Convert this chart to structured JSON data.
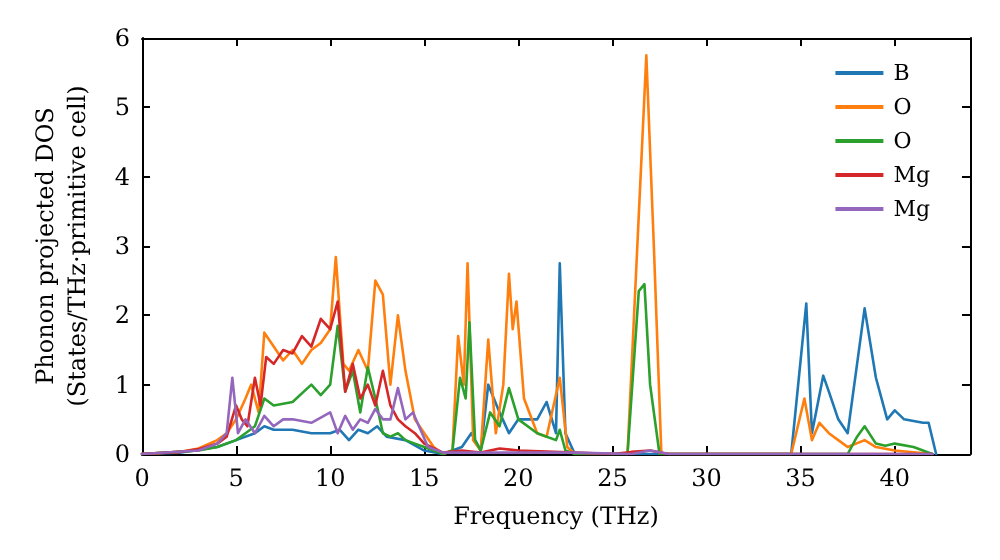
{
  "chart_data": {
    "type": "line",
    "xlabel": "Frequency (THz)",
    "ylabel": "Phonon projected DOS\n(States/THz·primitive cell)",
    "xlim": [
      0,
      44
    ],
    "xticks": [
      0,
      5,
      10,
      15,
      20,
      25,
      30,
      35,
      40
    ],
    "ylim": [
      0,
      6
    ],
    "yticks": [
      0,
      1,
      2,
      3,
      4,
      5,
      6
    ],
    "grid": false,
    "legend": "top right",
    "marker": "none",
    "line_style": "solid",
    "series": [
      {
        "name": "B",
        "color": "#1f77b4",
        "x": [
          0,
          2,
          4,
          5,
          6,
          6.5,
          7,
          8,
          9,
          10,
          10.5,
          11,
          11.5,
          12,
          12.5,
          13,
          14,
          15,
          16,
          17,
          17.5,
          18,
          18.4,
          19,
          19.5,
          20,
          21,
          21.5,
          22,
          22.2,
          22.5,
          23,
          34.5,
          35.3,
          35.6,
          36.2,
          36.5,
          37,
          37.5,
          38.4,
          39,
          39.6,
          40,
          40.5,
          41.5,
          41.8,
          42.2
        ],
        "values": [
          0,
          0.02,
          0.1,
          0.2,
          0.3,
          0.4,
          0.35,
          0.35,
          0.3,
          0.3,
          0.35,
          0.2,
          0.35,
          0.3,
          0.4,
          0.25,
          0.2,
          0.05,
          0,
          0.1,
          0.3,
          0.05,
          1.0,
          0.6,
          0.3,
          0.5,
          0.5,
          0.75,
          0.3,
          2.75,
          0.3,
          0,
          0,
          2.17,
          0.3,
          1.13,
          0.9,
          0.5,
          0.3,
          2.1,
          1.1,
          0.5,
          0.63,
          0.5,
          0.45,
          0.45,
          0
        ]
      },
      {
        "name": "O",
        "color": "#ff7f0e",
        "x": [
          0,
          2,
          3,
          4,
          4.5,
          5,
          5.5,
          5.8,
          6.2,
          6.5,
          7,
          7.5,
          8,
          8.5,
          9,
          9.5,
          10,
          10.3,
          10.7,
          11,
          11.5,
          12,
          12.4,
          12.8,
          13.2,
          13.6,
          14,
          14.5,
          15,
          15.5,
          16,
          16.5,
          16.8,
          17.1,
          17.3,
          17.6,
          18,
          18.4,
          18.8,
          19.2,
          19.5,
          19.7,
          19.9,
          20.3,
          21,
          21.5,
          22.2,
          22.6,
          23,
          25.8,
          26.8,
          27.2,
          27.6,
          34.5,
          35.2,
          35.6,
          36,
          36.5,
          37,
          37.5,
          38.4,
          39,
          40,
          42
        ],
        "values": [
          0,
          0.03,
          0.08,
          0.2,
          0.3,
          0.5,
          0.8,
          1.0,
          0.6,
          1.75,
          1.55,
          1.35,
          1.5,
          1.3,
          1.5,
          1.6,
          1.8,
          2.84,
          1.3,
          1.2,
          1.5,
          1.2,
          2.5,
          2.3,
          1.0,
          2.0,
          1.2,
          0.5,
          0.3,
          0.1,
          0,
          0.05,
          1.7,
          1.0,
          2.75,
          0.2,
          0.05,
          1.65,
          0.3,
          1.0,
          2.6,
          1.8,
          2.2,
          0.8,
          0.3,
          0.25,
          1.1,
          0.1,
          0,
          0,
          5.75,
          3.0,
          0,
          0,
          0.8,
          0.2,
          0.45,
          0.3,
          0.2,
          0.1,
          0.2,
          0.1,
          0.05,
          0
        ]
      },
      {
        "name": "O",
        "color": "#2ca02c",
        "x": [
          0,
          3,
          4,
          5,
          5.5,
          6,
          6.5,
          7,
          8,
          9,
          9.5,
          10,
          10.4,
          10.8,
          11.2,
          11.6,
          12,
          12.4,
          12.8,
          13.2,
          13.6,
          14,
          14.5,
          15,
          16,
          16.5,
          16.9,
          17.2,
          17.4,
          17.7,
          18,
          18.5,
          19,
          19.5,
          20,
          21,
          22,
          22.2,
          22.5,
          23,
          25.8,
          26.4,
          26.7,
          27,
          27.5,
          37.5,
          38,
          38.4,
          39,
          39.5,
          40,
          41,
          42
        ],
        "values": [
          0,
          0.05,
          0.1,
          0.2,
          0.3,
          0.4,
          0.8,
          0.7,
          0.75,
          1.0,
          0.85,
          1.0,
          1.85,
          0.9,
          1.2,
          0.6,
          1.25,
          0.8,
          0.3,
          0.25,
          0.3,
          0.2,
          0.15,
          0.1,
          0,
          0.05,
          1.1,
          0.8,
          1.9,
          0.2,
          0.05,
          0.6,
          0.4,
          0.95,
          0.5,
          0.3,
          0.2,
          0.35,
          0.05,
          0,
          0,
          2.35,
          2.45,
          1.0,
          0,
          0,
          0.25,
          0.4,
          0.15,
          0.12,
          0.15,
          0.1,
          0
        ]
      },
      {
        "name": "Mg",
        "color": "#d62728",
        "x": [
          0,
          2,
          3,
          4,
          4.5,
          5,
          5.3,
          5.6,
          6,
          6.3,
          6.6,
          7,
          7.5,
          8,
          8.5,
          9,
          9.5,
          10,
          10.4,
          10.8,
          11.2,
          11.6,
          12,
          12.4,
          12.8,
          13.2,
          13.6,
          14,
          14.5,
          15,
          16,
          17,
          18,
          19,
          20,
          23,
          25,
          26,
          27,
          28,
          30,
          42
        ],
        "values": [
          0,
          0.03,
          0.07,
          0.15,
          0.25,
          0.7,
          0.5,
          0.4,
          1.1,
          0.7,
          1.4,
          1.3,
          1.5,
          1.45,
          1.7,
          1.55,
          1.95,
          1.8,
          2.2,
          0.9,
          1.3,
          0.8,
          1.0,
          0.7,
          1.2,
          0.7,
          0.5,
          0.4,
          0.3,
          0.15,
          0.02,
          0.05,
          0.02,
          0.08,
          0.05,
          0.02,
          0,
          0.03,
          0.05,
          0,
          0,
          0
        ]
      },
      {
        "name": "Mg",
        "color": "#9467bd",
        "x": [
          0,
          3,
          4,
          4.5,
          4.8,
          5.1,
          5.5,
          6,
          6.5,
          7,
          7.5,
          8,
          9,
          10,
          10.4,
          10.8,
          11.2,
          11.6,
          12,
          12.4,
          12.8,
          13.2,
          13.6,
          14,
          14.4,
          14.8,
          15.2,
          16,
          18,
          20,
          23,
          26,
          27,
          28,
          42
        ],
        "values": [
          0,
          0.05,
          0.15,
          0.3,
          1.1,
          0.3,
          0.5,
          0.3,
          0.55,
          0.4,
          0.5,
          0.5,
          0.45,
          0.6,
          0.3,
          0.55,
          0.35,
          0.5,
          0.45,
          0.65,
          0.5,
          0.5,
          0.95,
          0.5,
          0.6,
          0.35,
          0.1,
          0.02,
          0.02,
          0.02,
          0.02,
          0,
          0.05,
          0,
          0
        ]
      }
    ]
  }
}
